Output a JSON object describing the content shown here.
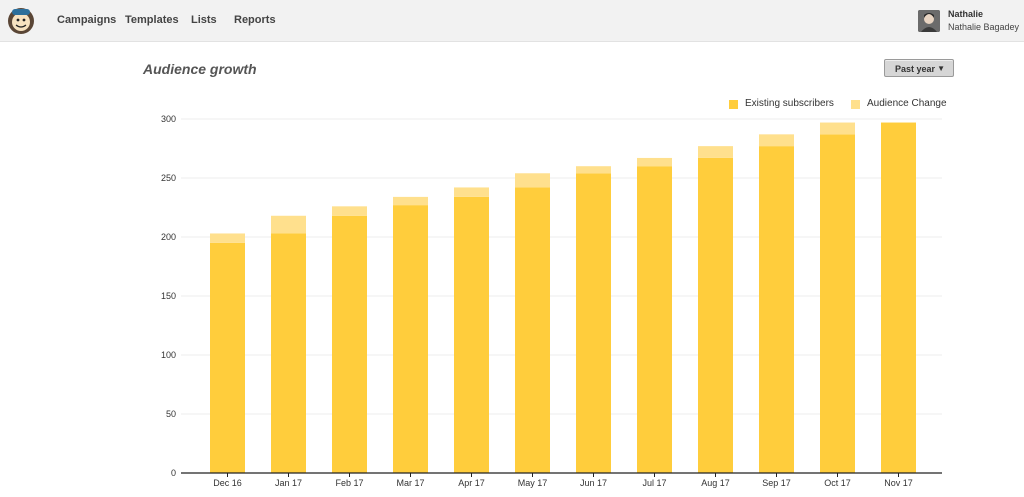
{
  "nav": {
    "items": [
      {
        "label": "Campaigns"
      },
      {
        "label": "Templates"
      },
      {
        "label": "Lists"
      },
      {
        "label": "Reports"
      }
    ],
    "user": {
      "name": "Nathalie",
      "full_name": "Nathalie Bagadey"
    }
  },
  "page": {
    "title": "Audience growth",
    "range_button": "Past year"
  },
  "chart_data": {
    "type": "bar",
    "stacked": true,
    "categories": [
      "Dec 16",
      "Jan 17",
      "Feb 17",
      "Mar 17",
      "Apr 17",
      "May 17",
      "Jun 17",
      "Jul 17",
      "Aug 17",
      "Sep 17",
      "Oct 17",
      "Nov 17"
    ],
    "series": [
      {
        "name": "Existing subscribers",
        "color": "#ffcd3c",
        "values": [
          195,
          203,
          218,
          227,
          234,
          242,
          254,
          260,
          267,
          277,
          287,
          297
        ]
      },
      {
        "name": "Audience Change",
        "color": "#ffe08d",
        "values": [
          8,
          15,
          8,
          7,
          8,
          12,
          6,
          7,
          10,
          10,
          10,
          0
        ]
      }
    ],
    "ylim": [
      0,
      300
    ],
    "yticks": [
      0,
      50,
      100,
      150,
      200,
      250,
      300
    ],
    "grid": true,
    "legend": "top-right"
  }
}
